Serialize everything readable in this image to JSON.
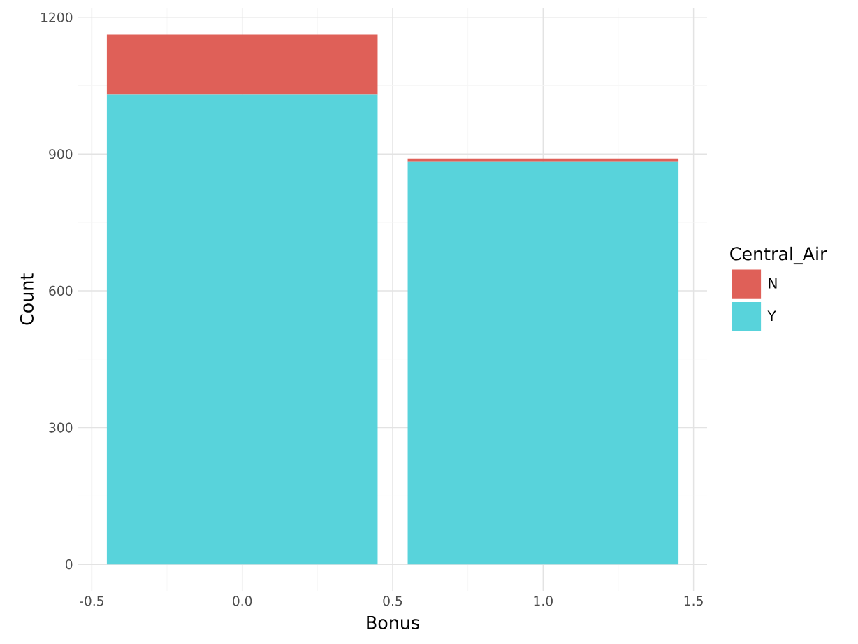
{
  "chart_data": {
    "type": "bar",
    "stacked": true,
    "xlabel": "Bonus",
    "ylabel": "Count",
    "legend_title": "Central_Air",
    "legend": "right",
    "grid": true,
    "x": [
      0,
      1
    ],
    "series": [
      {
        "name": "Y",
        "color": "#58d3db",
        "values": [
          1030,
          884
        ]
      },
      {
        "name": "N",
        "color": "#df6058",
        "values": [
          132,
          6
        ]
      }
    ],
    "xlim": [
      -0.545,
      1.545
    ],
    "xticks": [
      -0.5,
      {
        "value": 0,
        "label": "0.0"
      },
      0.5,
      {
        "value": 1,
        "label": "1.0"
      },
      1.5
    ],
    "ylim": [
      -58,
      1220
    ],
    "yticks": [
      0,
      300,
      600,
      900,
      1200
    ]
  }
}
